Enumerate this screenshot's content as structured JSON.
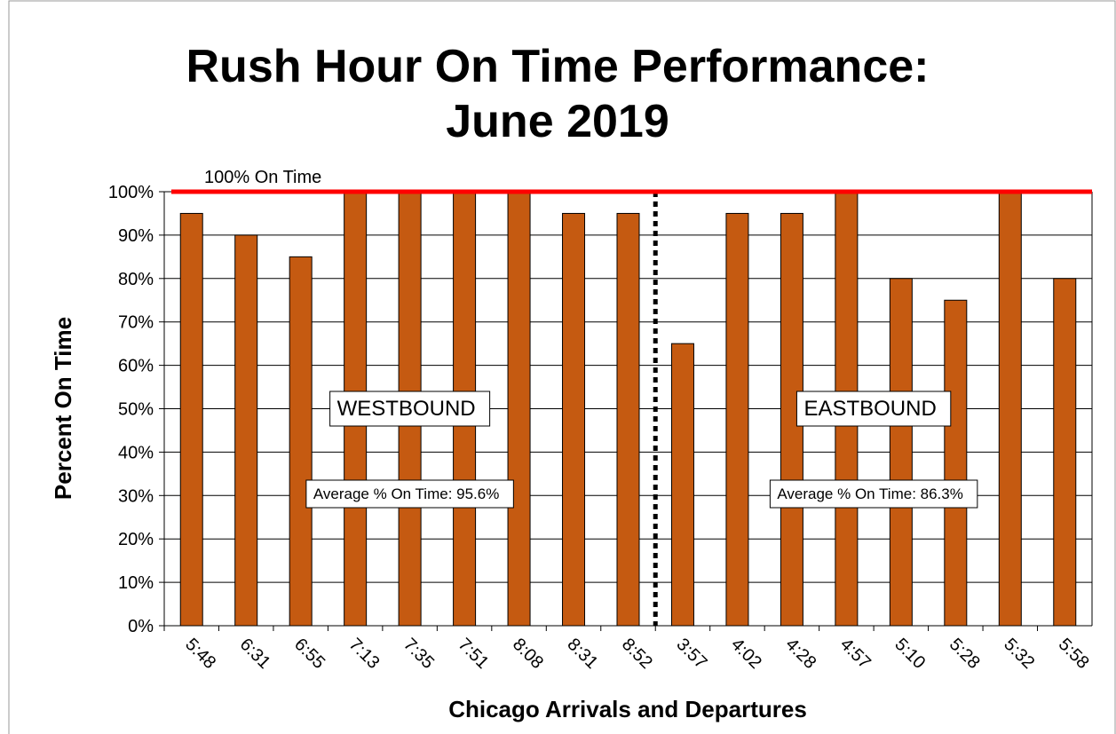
{
  "chart_data": {
    "type": "bar",
    "title": "Rush Hour On Time Performance:",
    "subtitle": "June 2019",
    "x_label": "Chicago Arrivals and Departures",
    "y_label": "Percent On Time",
    "color": "#c55a11",
    "groups": [
      {
        "name": "WESTBOUND",
        "average_label": "Average % On Time: 95.6%",
        "categories": [
          "5:48",
          "6:31",
          "6:55",
          "7:13",
          "7:35",
          "7:51",
          "8:08",
          "8:31",
          "8:52"
        ],
        "values": [
          95,
          90,
          85,
          100,
          100,
          100,
          100,
          95,
          95
        ]
      },
      {
        "name": "EASTBOUND",
        "average_label": "Average % On Time: 86.3%",
        "categories": [
          "3:57",
          "4:02",
          "4:28",
          "4:57",
          "5:10",
          "5:28",
          "5:32",
          "5:58"
        ],
        "values": [
          65,
          95,
          95,
          100,
          80,
          75,
          100,
          80
        ]
      }
    ],
    "reference_line": {
      "value": 100,
      "label": "100% On Time",
      "color": "#ff0000"
    },
    "ylim": [
      0,
      100
    ],
    "yticks": [
      {
        "value": 0,
        "label": "0%"
      },
      {
        "value": 10,
        "label": "10%"
      },
      {
        "value": 20,
        "label": "20%"
      },
      {
        "value": 30,
        "label": "30%"
      },
      {
        "value": 40,
        "label": "40%"
      },
      {
        "value": 50,
        "label": "50%"
      },
      {
        "value": 60,
        "label": "60%"
      },
      {
        "value": 70,
        "label": "70%"
      },
      {
        "value": 80,
        "label": "80%"
      },
      {
        "value": 90,
        "label": "90%"
      },
      {
        "value": 100,
        "label": "100%"
      }
    ],
    "grid": true
  }
}
